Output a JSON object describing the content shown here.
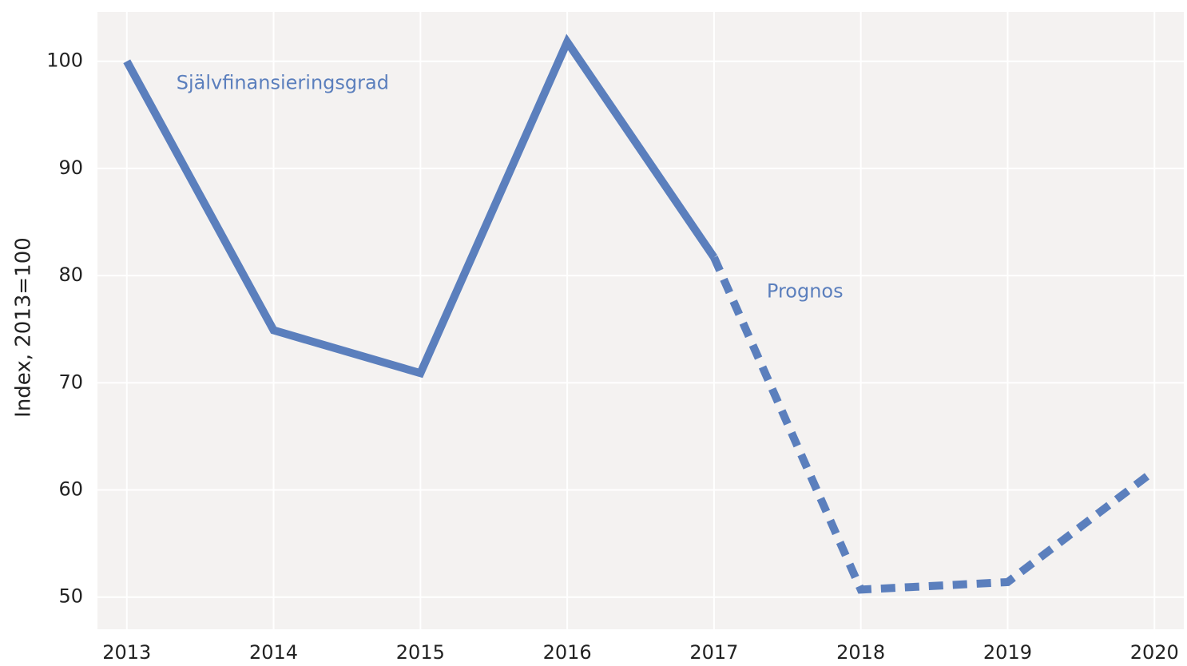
{
  "chart_data": {
    "type": "line",
    "y_label": "Index, 2013=100",
    "x": [
      2013,
      2014,
      2015,
      2016,
      2017,
      2018,
      2019,
      2020
    ],
    "series": [
      {
        "name": "Självfinansieringsgrad",
        "color": "#5b7fbd",
        "style": "solid",
        "values": [
          100,
          74.9,
          70.9,
          101.8,
          81.7,
          null,
          null,
          null
        ]
      },
      {
        "name": "Prognos",
        "color": "#5b7fbd",
        "style": "dashed",
        "values": [
          null,
          null,
          null,
          null,
          81.7,
          50.7,
          51.4,
          61.8
        ]
      }
    ],
    "xlim": [
      2012.8,
      2020.2
    ],
    "xticks": [
      2013,
      2014,
      2015,
      2016,
      2017,
      2018,
      2019,
      2020
    ],
    "ylim": [
      47.0,
      104.6
    ],
    "yticks": [
      50,
      60,
      70,
      80,
      90,
      100
    ],
    "grid": true
  }
}
